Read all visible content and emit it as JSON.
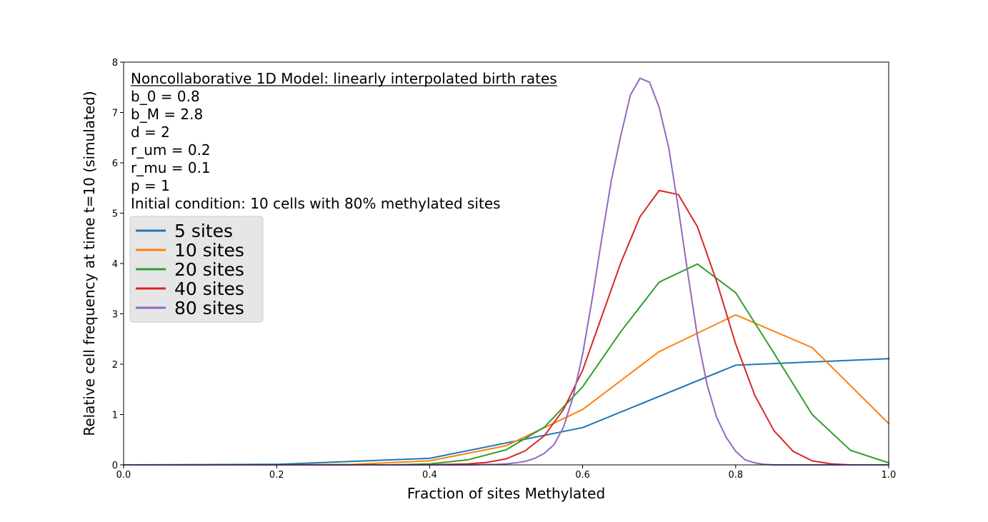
{
  "chart_data": {
    "type": "line",
    "xlabel": "Fraction of sites Methylated",
    "ylabel": "Relative cell frequency at time t=10 (simulated)",
    "xlim": [
      0.0,
      1.0
    ],
    "ylim": [
      0,
      8
    ],
    "xticks": [
      "0.0",
      "0.2",
      "0.4",
      "0.6",
      "0.8",
      "1.0"
    ],
    "yticks": [
      "0",
      "1",
      "2",
      "3",
      "4",
      "5",
      "6",
      "7",
      "8"
    ],
    "grid": false,
    "legend_position": "upper-left",
    "annotations": [
      "Noncollaborative 1D Model: linearly interpolated birth rates",
      "b_0 = 0.8",
      "b_M = 2.8",
      "d = 2",
      "r_um = 0.2",
      "r_mu = 0.1",
      "p = 1",
      "Initial condition: 10 cells with 80% methylated sites"
    ],
    "series": [
      {
        "name": "5 sites",
        "color": "#1f77b4",
        "x": [
          0.0,
          0.2,
          0.4,
          0.6,
          0.8,
          1.0
        ],
        "y": [
          0.0,
          0.01,
          0.13,
          0.74,
          1.98,
          2.11
        ]
      },
      {
        "name": "10 sites",
        "color": "#ff7f0e",
        "x": [
          0.0,
          0.1,
          0.2,
          0.3,
          0.4,
          0.5,
          0.6,
          0.7,
          0.8,
          0.9,
          1.0
        ],
        "y": [
          0.0,
          0.0,
          0.0,
          0.01,
          0.08,
          0.38,
          1.1,
          2.25,
          2.98,
          2.33,
          0.82
        ]
      },
      {
        "name": "20 sites",
        "color": "#2ca02c",
        "x": [
          0.0,
          0.2,
          0.35,
          0.4,
          0.45,
          0.5,
          0.55,
          0.6,
          0.65,
          0.7,
          0.75,
          0.8,
          0.85,
          0.9,
          0.95,
          1.0
        ],
        "y": [
          0.0,
          0.0,
          0.0,
          0.02,
          0.1,
          0.3,
          0.75,
          1.55,
          2.65,
          3.63,
          3.99,
          3.42,
          2.22,
          1.0,
          0.29,
          0.04
        ]
      },
      {
        "name": "40 sites",
        "color": "#d62728",
        "x": [
          0.0,
          0.3,
          0.4,
          0.425,
          0.45,
          0.475,
          0.5,
          0.525,
          0.55,
          0.575,
          0.6,
          0.625,
          0.65,
          0.675,
          0.7,
          0.725,
          0.75,
          0.775,
          0.8,
          0.825,
          0.85,
          0.875,
          0.9,
          0.925,
          0.95,
          1.0
        ],
        "y": [
          0.0,
          0.0,
          0.0,
          0.01,
          0.02,
          0.05,
          0.12,
          0.28,
          0.58,
          1.1,
          1.88,
          2.95,
          4.02,
          4.93,
          5.45,
          5.37,
          4.73,
          3.65,
          2.4,
          1.38,
          0.68,
          0.27,
          0.08,
          0.02,
          0.0,
          0.0
        ]
      },
      {
        "name": "80 sites",
        "color": "#9467bd",
        "x": [
          0.0,
          0.45,
          0.4875,
          0.5,
          0.5125,
          0.525,
          0.5375,
          0.55,
          0.5625,
          0.575,
          0.5875,
          0.6,
          0.6125,
          0.625,
          0.6375,
          0.65,
          0.6625,
          0.675,
          0.6875,
          0.7,
          0.7125,
          0.725,
          0.7375,
          0.75,
          0.7625,
          0.775,
          0.7875,
          0.8,
          0.8125,
          0.825,
          0.8375,
          0.85,
          0.8625,
          0.875,
          1.0
        ],
        "y": [
          0.0,
          0.0,
          0.01,
          0.02,
          0.04,
          0.07,
          0.13,
          0.23,
          0.4,
          0.75,
          1.35,
          2.2,
          3.3,
          4.5,
          5.65,
          6.55,
          7.35,
          7.68,
          7.6,
          7.1,
          6.3,
          5.1,
          3.8,
          2.55,
          1.6,
          0.95,
          0.55,
          0.27,
          0.1,
          0.04,
          0.01,
          0.0,
          0.0,
          0.0,
          0.0
        ]
      }
    ]
  }
}
